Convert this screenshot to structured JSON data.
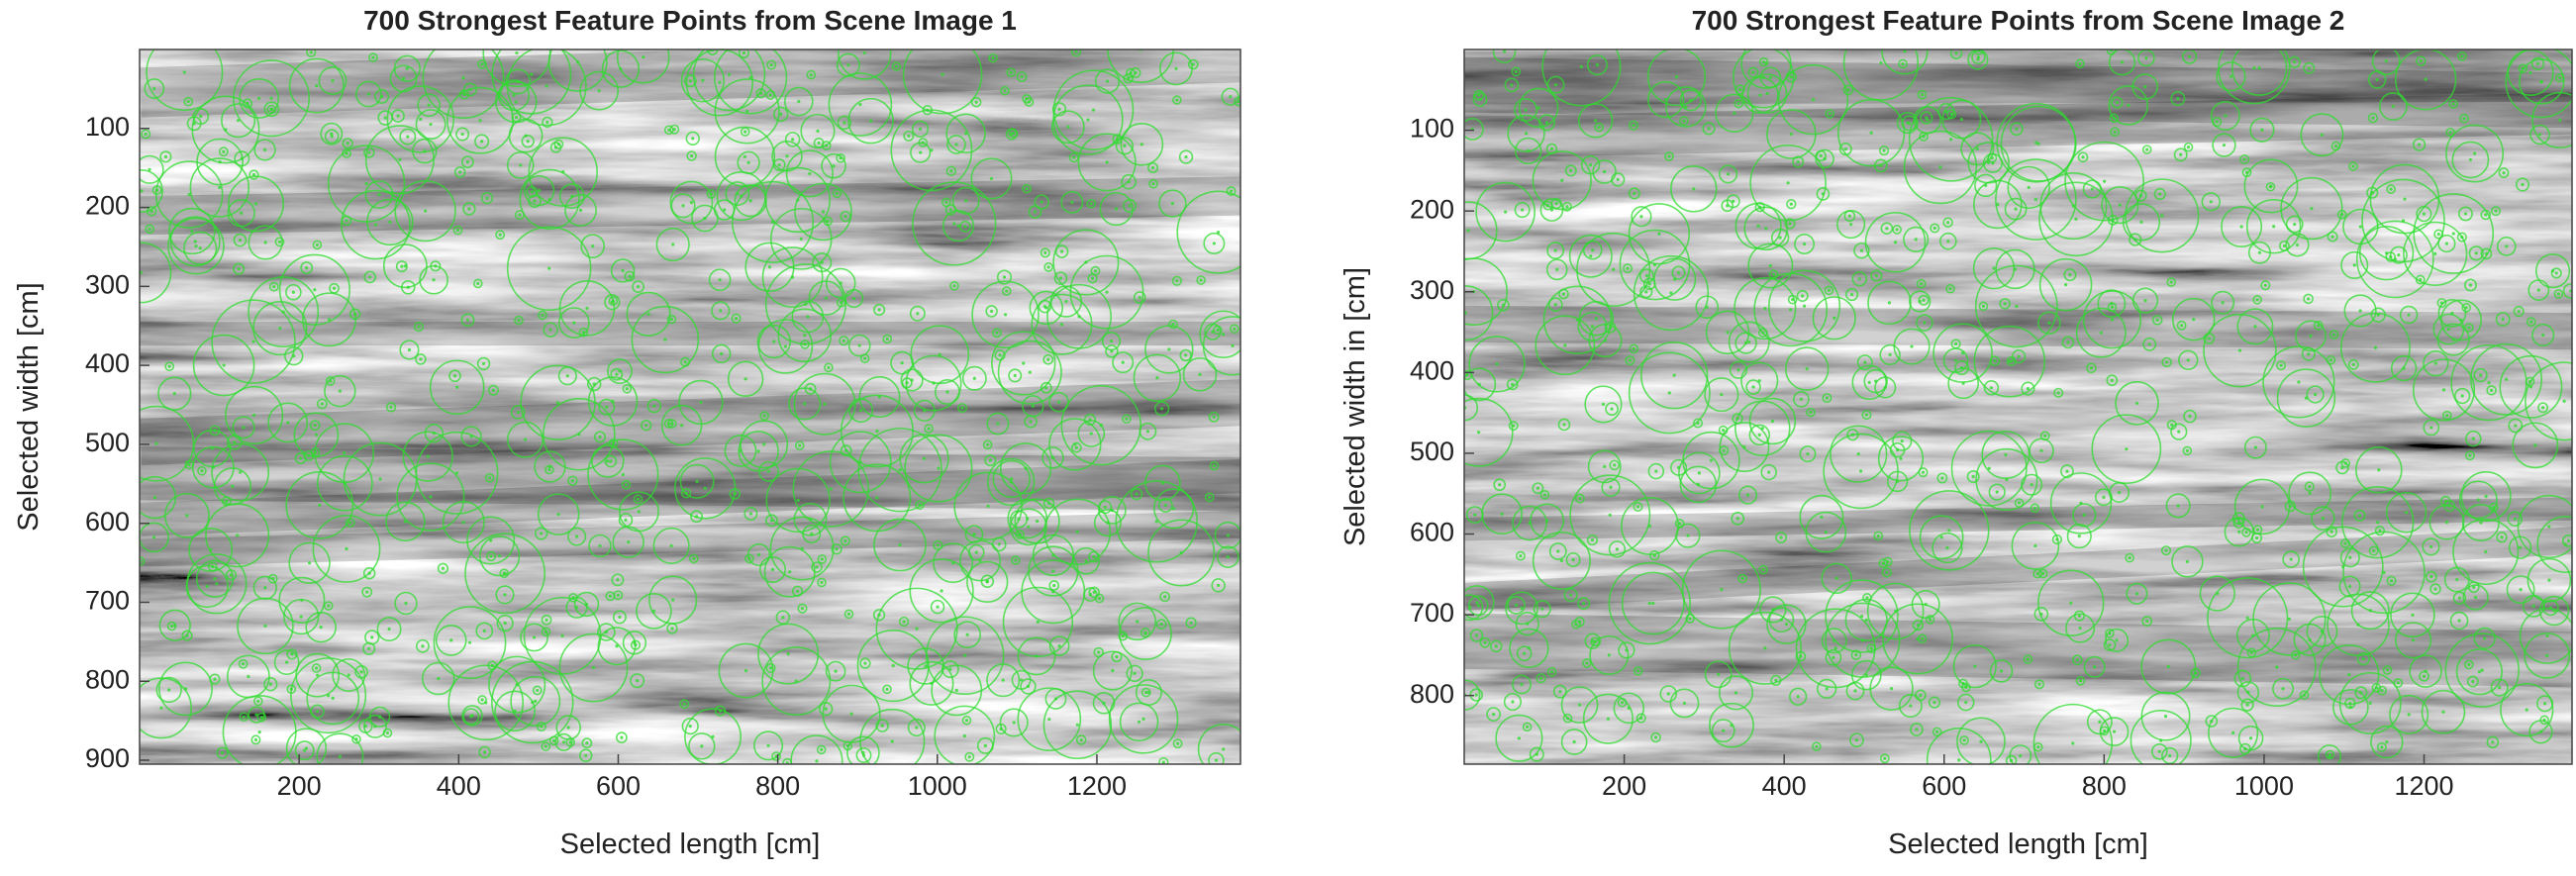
{
  "chart_data": [
    {
      "type": "image",
      "title": "700 Strongest Feature Points from Scene Image 1",
      "xlabel": "Selected length [cm]",
      "ylabel": "Selected width [cm]",
      "xlim": [
        0,
        1380
      ],
      "ylim": [
        0,
        905
      ],
      "y_reversed": true,
      "xticks": [
        200,
        400,
        600,
        800,
        1000,
        1200
      ],
      "yticks": [
        100,
        200,
        300,
        400,
        500,
        600,
        700,
        800,
        900
      ],
      "marker_color": "#2fdc2f"
    },
    {
      "type": "image",
      "title": "700 Strongest Feature Points from Scene Image 2",
      "xlabel": "Selected length [cm]",
      "ylabel": "Selected width in [cm]",
      "xlim": [
        0,
        1385
      ],
      "ylim": [
        0,
        885
      ],
      "y_reversed": true,
      "xticks": [
        200,
        400,
        600,
        800,
        1000,
        1200
      ],
      "yticks": [
        100,
        200,
        300,
        400,
        500,
        600,
        700,
        800
      ],
      "marker_color": "#2fdc2f"
    }
  ]
}
